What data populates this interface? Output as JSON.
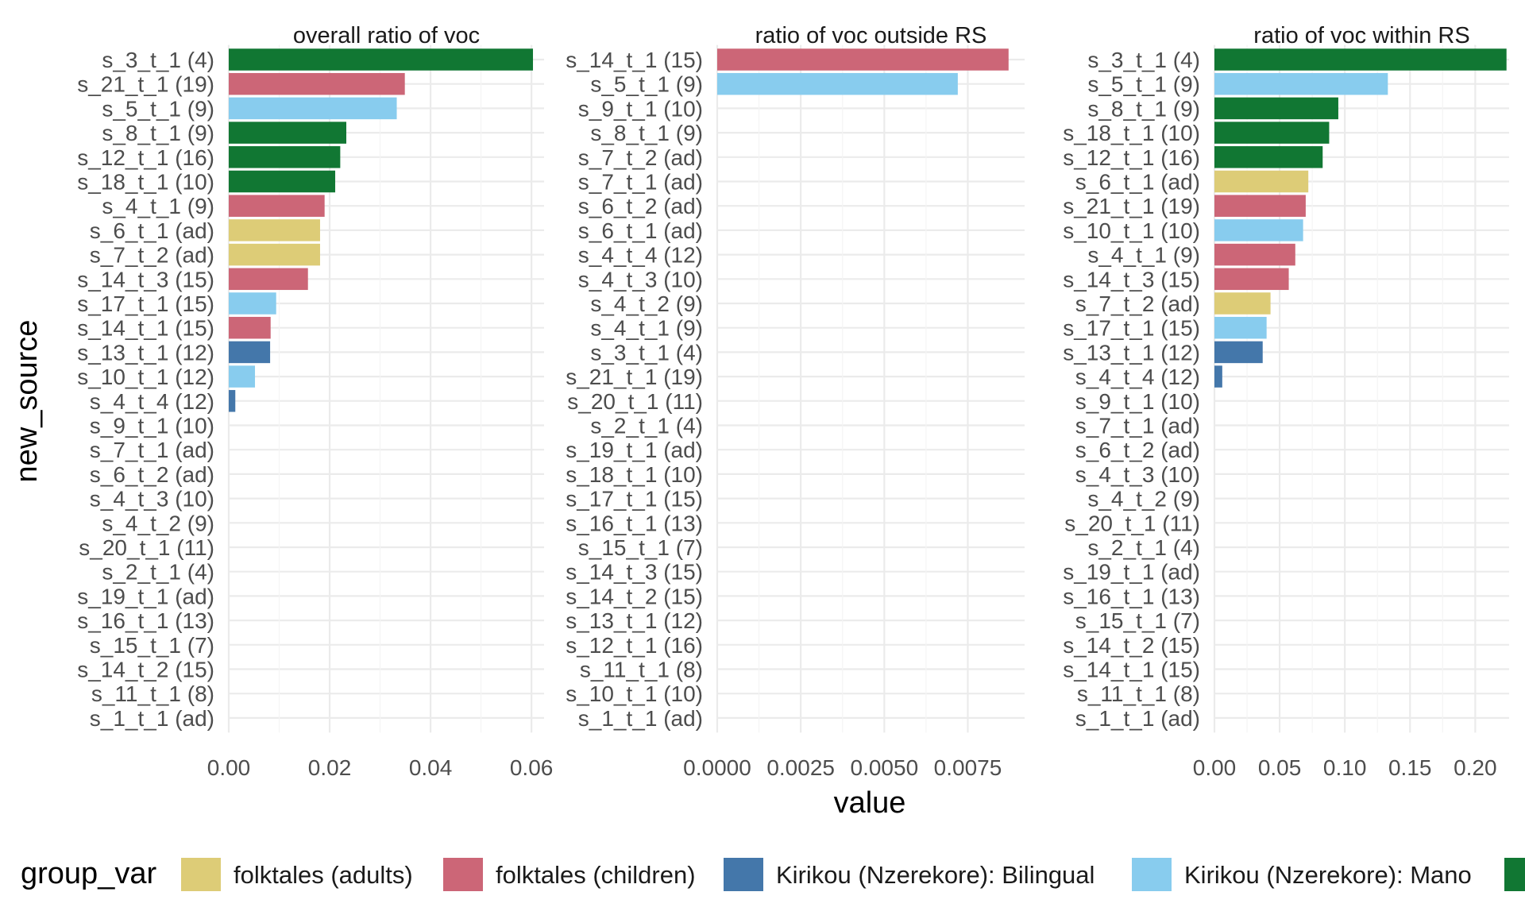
{
  "chart_data": {
    "type": "bar",
    "orientation": "horizontal",
    "xlabel": "value",
    "ylabel": "new_source",
    "legend": {
      "title": "group_var",
      "placement": "bottom",
      "entries": [
        {
          "name": "folktales (adults)",
          "color": "#DDCC77"
        },
        {
          "name": "folktales (children)",
          "color": "#CC6677"
        },
        {
          "name": "Kirikou (Nzerekore): Bilingual",
          "color": "#4477AA"
        },
        {
          "name": "Kirikou (Nzerekore): Mano",
          "color": "#88CCEE"
        },
        {
          "name": "",
          "color": "#117733"
        }
      ]
    },
    "grid": true,
    "facets": [
      {
        "title": "overall ratio of voc",
        "xlim": [
          0,
          0.0625
        ],
        "ticks": [
          0,
          0.02,
          0.04,
          0.06
        ],
        "tick_labels": [
          "0.00",
          "0.02",
          "0.04",
          "0.06"
        ],
        "categories": [
          "s_3_t_1 (4)",
          "s_21_t_1 (19)",
          "s_5_t_1 (9)",
          "s_8_t_1 (9)",
          "s_12_t_1 (16)",
          "s_18_t_1 (10)",
          "s_4_t_1 (9)",
          "s_6_t_1 (ad)",
          "s_7_t_2 (ad)",
          "s_14_t_3 (15)",
          "s_17_t_1 (15)",
          "s_14_t_1 (15)",
          "s_13_t_1 (12)",
          "s_10_t_1 (12)",
          "s_4_t_4 (12)",
          "s_9_t_1 (10)",
          "s_7_t_1 (ad)",
          "s_6_t_2 (ad)",
          "s_4_t_3 (10)",
          "s_4_t_2 (9)",
          "s_20_t_1 (11)",
          "s_2_t_1 (4)",
          "s_19_t_1 (ad)",
          "s_16_t_1 (13)",
          "s_15_t_1 (7)",
          "s_14_t_2 (15)",
          "s_11_t_1 (8)",
          "s_1_t_1 (ad)"
        ],
        "values": [
          0.0603,
          0.0349,
          0.0333,
          0.0233,
          0.0221,
          0.0211,
          0.019,
          0.0181,
          0.0181,
          0.0157,
          0.0094,
          0.0083,
          0.0082,
          0.0052,
          0.0013,
          0,
          0,
          0,
          0,
          0,
          0,
          0,
          0,
          0,
          0,
          0,
          0,
          0
        ],
        "groups": [
          4,
          1,
          3,
          4,
          4,
          4,
          1,
          0,
          0,
          1,
          3,
          1,
          2,
          3,
          2,
          null,
          null,
          null,
          null,
          null,
          null,
          null,
          null,
          null,
          null,
          null,
          null,
          null
        ]
      },
      {
        "title": "ratio of voc outside RS",
        "xlim": [
          0,
          0.0092
        ],
        "ticks": [
          0,
          0.0025,
          0.005,
          0.0075
        ],
        "tick_labels": [
          "0.0000",
          "0.0025",
          "0.0050",
          "0.0075"
        ],
        "categories": [
          "s_14_t_1 (15)",
          "s_5_t_1 (9)",
          "s_9_t_1 (10)",
          "s_8_t_1 (9)",
          "s_7_t_2 (ad)",
          "s_7_t_1 (ad)",
          "s_6_t_2 (ad)",
          "s_6_t_1 (ad)",
          "s_4_t_4 (12)",
          "s_4_t_3 (10)",
          "s_4_t_2 (9)",
          "s_4_t_1 (9)",
          "s_3_t_1 (4)",
          "s_21_t_1 (19)",
          "s_20_t_1 (11)",
          "s_2_t_1 (4)",
          "s_19_t_1 (ad)",
          "s_18_t_1 (10)",
          "s_17_t_1 (15)",
          "s_16_t_1 (13)",
          "s_15_t_1 (7)",
          "s_14_t_3 (15)",
          "s_14_t_2 (15)",
          "s_13_t_1 (12)",
          "s_12_t_1 (16)",
          "s_11_t_1 (8)",
          "s_10_t_1 (10)",
          "s_1_t_1 (ad)"
        ],
        "values": [
          0.00872,
          0.0072,
          0,
          0,
          0,
          0,
          0,
          0,
          0,
          0,
          0,
          0,
          0,
          0,
          0,
          0,
          0,
          0,
          0,
          0,
          0,
          0,
          0,
          0,
          0,
          0,
          0,
          0
        ],
        "groups": [
          1,
          3,
          null,
          null,
          null,
          null,
          null,
          null,
          null,
          null,
          null,
          null,
          null,
          null,
          null,
          null,
          null,
          null,
          null,
          null,
          null,
          null,
          null,
          null,
          null,
          null,
          null,
          null
        ]
      },
      {
        "title": "ratio of voc within RS",
        "xlim": [
          0,
          0.226
        ],
        "ticks": [
          0,
          0.05,
          0.1,
          0.15,
          0.2
        ],
        "tick_labels": [
          "0.00",
          "0.05",
          "0.10",
          "0.15",
          "0.20"
        ],
        "categories": [
          "s_3_t_1 (4)",
          "s_5_t_1 (9)",
          "s_8_t_1 (9)",
          "s_18_t_1 (10)",
          "s_12_t_1 (16)",
          "s_6_t_1 (ad)",
          "s_21_t_1 (19)",
          "s_10_t_1 (10)",
          "s_4_t_1 (9)",
          "s_14_t_3 (15)",
          "s_7_t_2 (ad)",
          "s_17_t_1 (15)",
          "s_13_t_1 (12)",
          "s_4_t_4 (12)",
          "s_9_t_1 (10)",
          "s_7_t_1 (ad)",
          "s_6_t_2 (ad)",
          "s_4_t_3 (10)",
          "s_4_t_2 (9)",
          "s_20_t_1 (11)",
          "s_2_t_1 (4)",
          "s_19_t_1 (ad)",
          "s_16_t_1 (13)",
          "s_15_t_1 (7)",
          "s_14_t_2 (15)",
          "s_14_t_1 (15)",
          "s_11_t_1 (8)",
          "s_1_t_1 (ad)"
        ],
        "values": [
          0.224,
          0.133,
          0.095,
          0.088,
          0.083,
          0.072,
          0.07,
          0.068,
          0.062,
          0.057,
          0.043,
          0.04,
          0.037,
          0.006,
          0,
          0,
          0,
          0,
          0,
          0,
          0,
          0,
          0,
          0,
          0,
          0,
          0,
          0
        ],
        "groups": [
          4,
          3,
          4,
          4,
          4,
          0,
          1,
          3,
          1,
          1,
          0,
          3,
          2,
          2,
          null,
          null,
          null,
          null,
          null,
          null,
          null,
          null,
          null,
          null,
          null,
          null,
          null,
          null
        ]
      }
    ]
  }
}
